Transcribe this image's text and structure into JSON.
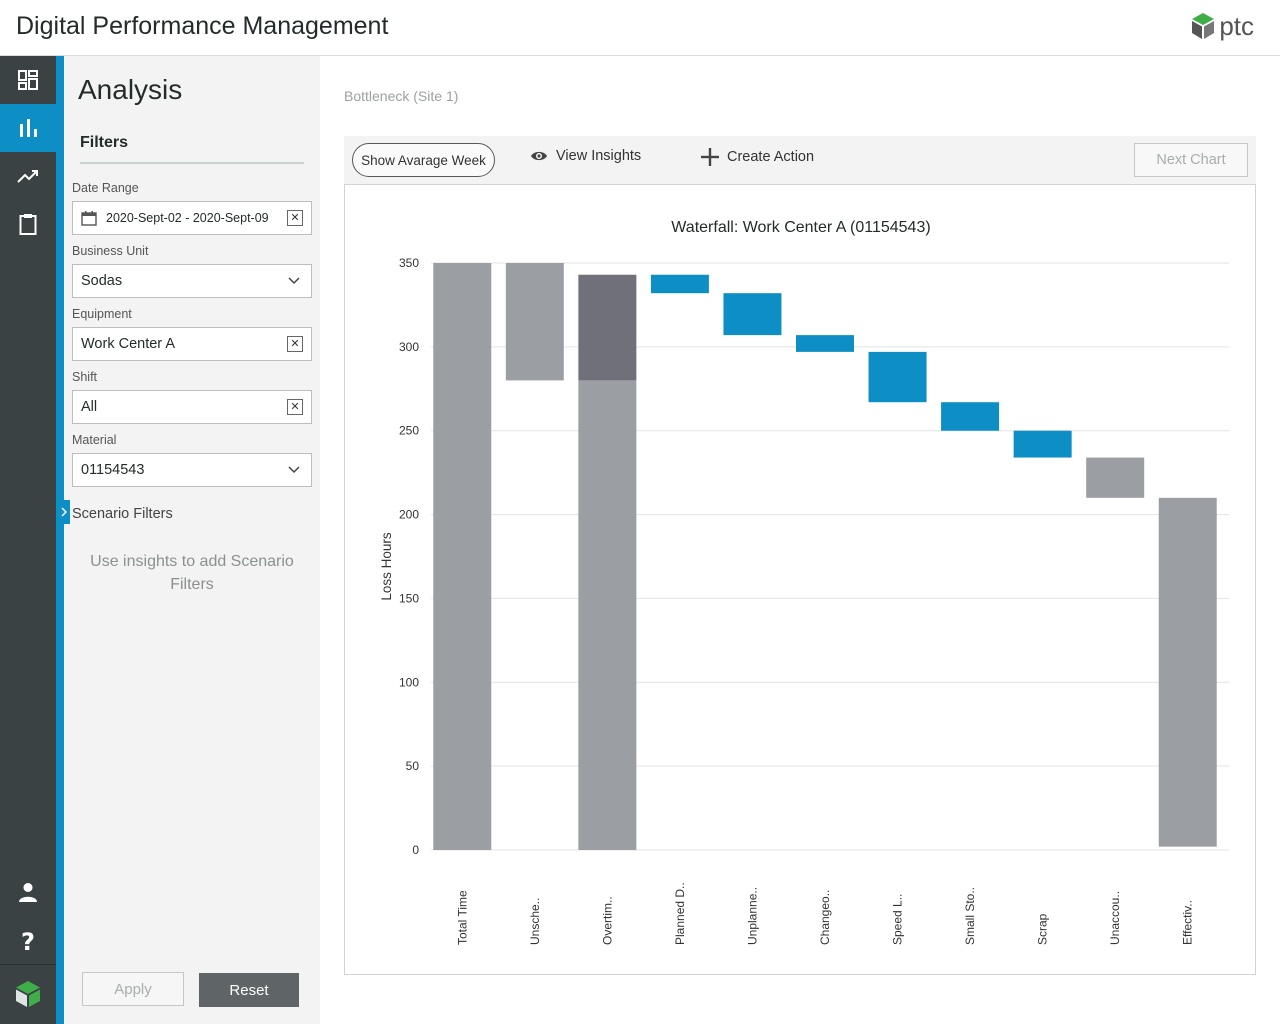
{
  "app": {
    "title": "Digital Performance Management",
    "logo_text": "ptc"
  },
  "nav": {
    "items": [
      {
        "name": "dashboard-icon",
        "active": false
      },
      {
        "name": "analysis-icon",
        "active": true
      },
      {
        "name": "trends-icon",
        "active": false
      },
      {
        "name": "clipboard-icon",
        "active": false
      }
    ],
    "bottom": [
      "user-icon",
      "help-icon",
      "ptc-badge-icon"
    ]
  },
  "panel": {
    "title": "Analysis",
    "filters_tab": "Filters",
    "date_range": {
      "label": "Date Range",
      "value": "2020-Sept-02 - 2020-Sept-09"
    },
    "business_unit": {
      "label": "Business Unit",
      "value": "Sodas"
    },
    "equipment": {
      "label": "Equipment",
      "value": "Work Center A"
    },
    "shift": {
      "label": "Shift",
      "value": "All"
    },
    "material": {
      "label": "Material",
      "value": "01154543"
    },
    "scenario_filters": "Scenario Filters",
    "scenario_hint": "Use insights to add Scenario Filters",
    "apply": "Apply",
    "reset": "Reset"
  },
  "main": {
    "breadcrumb": "Bottleneck (Site 1)",
    "toolbar": {
      "show_average": "Show Avarage Week",
      "view_insights": "View Insights",
      "create_action": "Create Action",
      "next_chart": "Next Chart"
    }
  },
  "colors": {
    "accent": "#0d8ec5",
    "rail": "#3a4244",
    "bar_gray": "#9b9ea3",
    "bar_dark": "#6f7079",
    "bar_blue": "#0d8ec5"
  },
  "chart_data": {
    "type": "bar",
    "subtype": "waterfall",
    "title": "Waterfall: Work Center A (01154543)",
    "ylabel": "Loss Hours",
    "xlabel": "",
    "ylim": [
      0,
      350
    ],
    "yticks": [
      0,
      50,
      100,
      150,
      200,
      250,
      300,
      350
    ],
    "grid": true,
    "categories": [
      "Total Time",
      "Unsche..",
      "Overtim..",
      "Planned D..",
      "Unplanne..",
      "Changeo..",
      "Speed L..",
      "Small Sto..",
      "Scrap",
      "Unaccou..",
      "Effectiv.."
    ],
    "bars": [
      {
        "start": 0,
        "end": 350,
        "color": "gray"
      },
      {
        "start": 280,
        "end": 350,
        "color": "gray"
      },
      {
        "start": 0,
        "end": 280,
        "color": "gray",
        "stack_start": 280,
        "stack_end": 343,
        "stack_color": "dark"
      },
      {
        "start": 332,
        "end": 343,
        "color": "blue"
      },
      {
        "start": 307,
        "end": 332,
        "color": "blue"
      },
      {
        "start": 297,
        "end": 307,
        "color": "blue"
      },
      {
        "start": 267,
        "end": 297,
        "color": "blue"
      },
      {
        "start": 250,
        "end": 267,
        "color": "blue"
      },
      {
        "start": 234,
        "end": 250,
        "color": "blue"
      },
      {
        "start": 210,
        "end": 234,
        "color": "gray"
      },
      {
        "start": 2,
        "end": 210,
        "color": "gray"
      }
    ]
  }
}
